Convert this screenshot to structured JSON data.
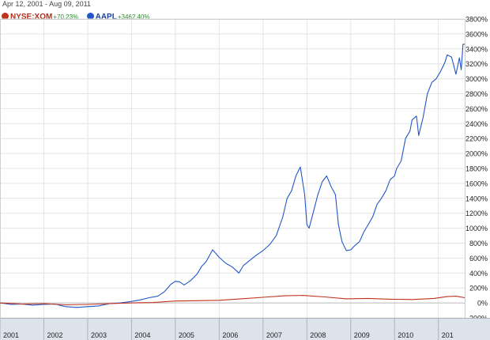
{
  "header": {
    "date_start": "Apr 12, 2001",
    "date_sep": " - ",
    "date_end": "Aug 09, 2011"
  },
  "legend": [
    {
      "name": "NYSE:XOM",
      "change": "+70.23%",
      "color": "#c0321c",
      "name_color": "#b5301d",
      "icon": "circle-marker"
    },
    {
      "name": "AAPL",
      "change": "+3462.40%",
      "color": "#2456c8",
      "name_color": "#1f3f9e",
      "icon": "circle-marker"
    }
  ],
  "chart_data": {
    "type": "line",
    "x_tick_labels": [
      "2001",
      "2002",
      "2003",
      "2004",
      "2005",
      "2006",
      "2007",
      "2008",
      "2009",
      "2010",
      "201"
    ],
    "y_ticks": [
      -200,
      0,
      200,
      400,
      600,
      800,
      1000,
      1200,
      1400,
      1600,
      1800,
      2000,
      2200,
      2400,
      2600,
      2800,
      3000,
      3200,
      3400,
      3600,
      3800
    ],
    "y_tick_suffix": "%",
    "ylim": [
      -200,
      3800
    ],
    "xlim": [
      2001.0,
      2011.6
    ],
    "grid": true,
    "series": [
      {
        "name": "AAPL",
        "color": "#2456c8",
        "points": [
          [
            2001.0,
            0
          ],
          [
            2001.25,
            -20
          ],
          [
            2001.5,
            -15
          ],
          [
            2001.75,
            -30
          ],
          [
            2002.0,
            -20
          ],
          [
            2002.25,
            -15
          ],
          [
            2002.5,
            -50
          ],
          [
            2002.75,
            -60
          ],
          [
            2003.0,
            -50
          ],
          [
            2003.25,
            -40
          ],
          [
            2003.5,
            -10
          ],
          [
            2003.75,
            0
          ],
          [
            2004.0,
            20
          ],
          [
            2004.2,
            40
          ],
          [
            2004.4,
            70
          ],
          [
            2004.6,
            90
          ],
          [
            2004.75,
            150
          ],
          [
            2004.9,
            250
          ],
          [
            2005.0,
            290
          ],
          [
            2005.1,
            280
          ],
          [
            2005.2,
            240
          ],
          [
            2005.35,
            300
          ],
          [
            2005.5,
            390
          ],
          [
            2005.6,
            490
          ],
          [
            2005.7,
            550
          ],
          [
            2005.85,
            710
          ],
          [
            2006.0,
            610
          ],
          [
            2006.15,
            530
          ],
          [
            2006.3,
            480
          ],
          [
            2006.45,
            400
          ],
          [
            2006.55,
            500
          ],
          [
            2006.7,
            570
          ],
          [
            2006.85,
            640
          ],
          [
            2007.0,
            700
          ],
          [
            2007.15,
            780
          ],
          [
            2007.3,
            900
          ],
          [
            2007.45,
            1150
          ],
          [
            2007.55,
            1400
          ],
          [
            2007.65,
            1500
          ],
          [
            2007.75,
            1700
          ],
          [
            2007.85,
            1820
          ],
          [
            2007.95,
            1450
          ],
          [
            2008.0,
            1050
          ],
          [
            2008.05,
            1000
          ],
          [
            2008.15,
            1220
          ],
          [
            2008.25,
            1450
          ],
          [
            2008.35,
            1620
          ],
          [
            2008.45,
            1700
          ],
          [
            2008.55,
            1560
          ],
          [
            2008.65,
            1450
          ],
          [
            2008.72,
            1050
          ],
          [
            2008.8,
            820
          ],
          [
            2008.9,
            700
          ],
          [
            2009.0,
            710
          ],
          [
            2009.1,
            770
          ],
          [
            2009.2,
            820
          ],
          [
            2009.3,
            950
          ],
          [
            2009.4,
            1050
          ],
          [
            2009.5,
            1150
          ],
          [
            2009.6,
            1320
          ],
          [
            2009.7,
            1400
          ],
          [
            2009.8,
            1500
          ],
          [
            2009.9,
            1650
          ],
          [
            2010.0,
            1700
          ],
          [
            2010.05,
            1800
          ],
          [
            2010.15,
            1900
          ],
          [
            2010.25,
            2200
          ],
          [
            2010.35,
            2300
          ],
          [
            2010.4,
            2450
          ],
          [
            2010.5,
            2500
          ],
          [
            2010.55,
            2240
          ],
          [
            2010.65,
            2480
          ],
          [
            2010.75,
            2800
          ],
          [
            2010.85,
            2950
          ],
          [
            2010.95,
            3000
          ],
          [
            2011.05,
            3100
          ],
          [
            2011.15,
            3220
          ],
          [
            2011.2,
            3320
          ],
          [
            2011.3,
            3290
          ],
          [
            2011.4,
            3060
          ],
          [
            2011.48,
            3280
          ],
          [
            2011.52,
            3120
          ],
          [
            2011.56,
            3460
          ],
          [
            2011.6,
            3462
          ]
        ]
      },
      {
        "name": "NYSE:XOM",
        "color": "#c0321c",
        "points": [
          [
            2001.0,
            0
          ],
          [
            2001.5,
            -15
          ],
          [
            2002.0,
            -10
          ],
          [
            2002.5,
            -25
          ],
          [
            2003.0,
            -20
          ],
          [
            2003.5,
            -10
          ],
          [
            2004.0,
            0
          ],
          [
            2004.5,
            5
          ],
          [
            2005.0,
            25
          ],
          [
            2005.5,
            30
          ],
          [
            2006.0,
            35
          ],
          [
            2006.5,
            55
          ],
          [
            2007.0,
            75
          ],
          [
            2007.5,
            95
          ],
          [
            2007.9,
            100
          ],
          [
            2008.4,
            80
          ],
          [
            2008.9,
            55
          ],
          [
            2009.4,
            60
          ],
          [
            2009.9,
            50
          ],
          [
            2010.4,
            45
          ],
          [
            2010.9,
            60
          ],
          [
            2011.2,
            85
          ],
          [
            2011.4,
            90
          ],
          [
            2011.6,
            70
          ]
        ]
      }
    ]
  }
}
